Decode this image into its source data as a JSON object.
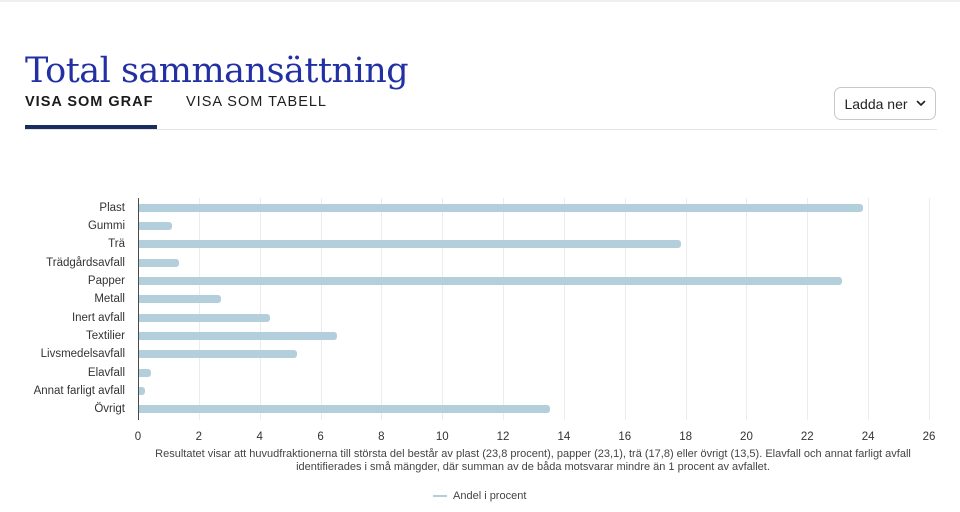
{
  "page": {
    "title": "Total sammansättning"
  },
  "tabs": [
    {
      "label": "VISA SOM GRAF",
      "active": true
    },
    {
      "label": "VISA SOM TABELL",
      "active": false
    }
  ],
  "download": {
    "label": "Ladda ner",
    "icon": "chevron-down-icon"
  },
  "colors": {
    "title": "#2330a3",
    "active_tab_underline": "#1a2d63",
    "bar": "#b3cfdc"
  },
  "chart_data": {
    "type": "bar",
    "orientation": "horizontal",
    "title": "",
    "xlabel": "",
    "ylabel": "",
    "categories": [
      "Plast",
      "Gummi",
      "Trä",
      "Trädgårdsavfall",
      "Papper",
      "Metall",
      "Inert avfall",
      "Textilier",
      "Livsmedelsavfall",
      "Elavfall",
      "Annat farligt avfall",
      "Övrigt"
    ],
    "series": [
      {
        "name": "Andel i procent",
        "values": [
          23.8,
          1.1,
          17.8,
          1.3,
          23.1,
          2.7,
          4.3,
          6.5,
          5.2,
          0.4,
          0.2,
          13.5
        ]
      }
    ],
    "xlim": [
      0,
      26
    ],
    "xticks": [
      "0",
      "2",
      "4",
      "6",
      "8",
      "10",
      "12",
      "14",
      "16",
      "18",
      "20",
      "22",
      "24",
      "26"
    ],
    "grid": true,
    "legend": {
      "position": "bottom",
      "entries": [
        "Andel i procent"
      ]
    },
    "caption": "Resultatet visar att huvudfraktionerna till största del består av plast (23,8 procent), papper (23,1), trä (17,8) eller övrigt (13,5). Elavfall och annat farligt avfall identifierades i små mängder, där summan av de båda motsvarar mindre än 1 procent av avfallet."
  }
}
